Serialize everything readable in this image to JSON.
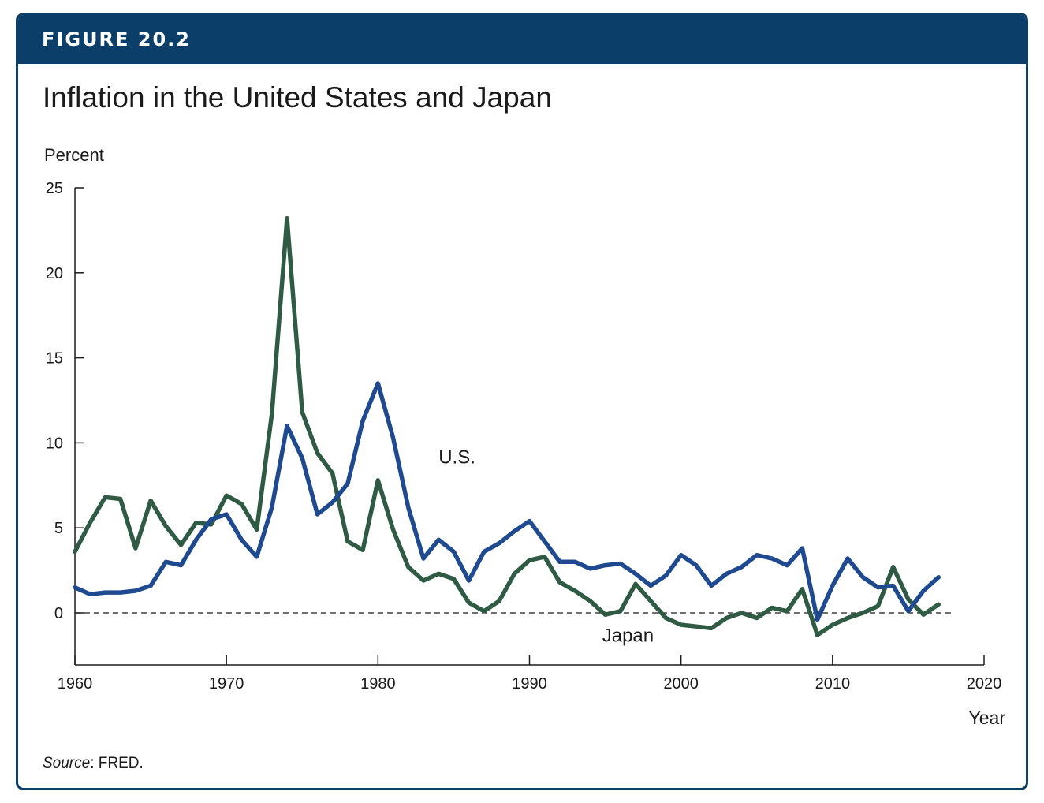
{
  "figure": {
    "label": "FIGURE 20.2",
    "title": "Inflation in the United States and Japan",
    "source_label": "Source",
    "source_text": ": FRED."
  },
  "colors": {
    "banner": "#0b3e68",
    "us": "#1f4a8f",
    "japan": "#2f5b44"
  },
  "chart_data": {
    "type": "line",
    "title": "Inflation in the United States and Japan",
    "ylabel": "Percent",
    "xlabel": "Year",
    "xlim": [
      1960,
      2020
    ],
    "ylim": [
      -3,
      25
    ],
    "xticks": [
      1960,
      1970,
      1980,
      1990,
      2000,
      2010,
      2020
    ],
    "yticks": [
      0,
      5,
      10,
      15,
      20,
      25
    ],
    "zero_line": "dashed",
    "grid": false,
    "x": [
      1960,
      1961,
      1962,
      1963,
      1964,
      1965,
      1966,
      1967,
      1968,
      1969,
      1970,
      1971,
      1972,
      1973,
      1974,
      1975,
      1976,
      1977,
      1978,
      1979,
      1980,
      1981,
      1982,
      1983,
      1984,
      1985,
      1986,
      1987,
      1988,
      1989,
      1990,
      1991,
      1992,
      1993,
      1994,
      1995,
      1996,
      1997,
      1998,
      1999,
      2000,
      2001,
      2002,
      2003,
      2004,
      2005,
      2006,
      2007,
      2008,
      2009,
      2010,
      2011,
      2012,
      2013,
      2014,
      2015,
      2016,
      2017
    ],
    "series": [
      {
        "name": "U.S.",
        "color": "#1f4a8f",
        "values": [
          1.5,
          1.1,
          1.2,
          1.2,
          1.3,
          1.6,
          3.0,
          2.8,
          4.3,
          5.5,
          5.8,
          4.3,
          3.3,
          6.2,
          11.0,
          9.1,
          5.8,
          6.5,
          7.6,
          11.3,
          13.5,
          10.3,
          6.2,
          3.2,
          4.3,
          3.6,
          1.9,
          3.6,
          4.1,
          4.8,
          5.4,
          4.2,
          3.0,
          3.0,
          2.6,
          2.8,
          2.9,
          2.3,
          1.6,
          2.2,
          3.4,
          2.8,
          1.6,
          2.3,
          2.7,
          3.4,
          3.2,
          2.8,
          3.8,
          -0.4,
          1.6,
          3.2,
          2.1,
          1.5,
          1.6,
          0.1,
          1.3,
          2.1
        ],
        "label_position": [
          1984,
          8.8
        ]
      },
      {
        "name": "Japan",
        "color": "#2f5b44",
        "values": [
          3.6,
          5.3,
          6.8,
          6.7,
          3.8,
          6.6,
          5.1,
          4.0,
          5.3,
          5.2,
          6.9,
          6.4,
          4.9,
          11.7,
          23.2,
          11.8,
          9.4,
          8.2,
          4.2,
          3.7,
          7.8,
          4.9,
          2.7,
          1.9,
          2.3,
          2.0,
          0.6,
          0.1,
          0.7,
          2.3,
          3.1,
          3.3,
          1.8,
          1.3,
          0.7,
          -0.1,
          0.1,
          1.7,
          0.7,
          -0.3,
          -0.7,
          -0.8,
          -0.9,
          -0.3,
          0.0,
          -0.3,
          0.3,
          0.1,
          1.4,
          -1.3,
          -0.7,
          -0.3,
          0.0,
          0.4,
          2.7,
          0.8,
          -0.1,
          0.5
        ],
        "label_position": [
          1994.8,
          -1.7
        ]
      }
    ]
  }
}
